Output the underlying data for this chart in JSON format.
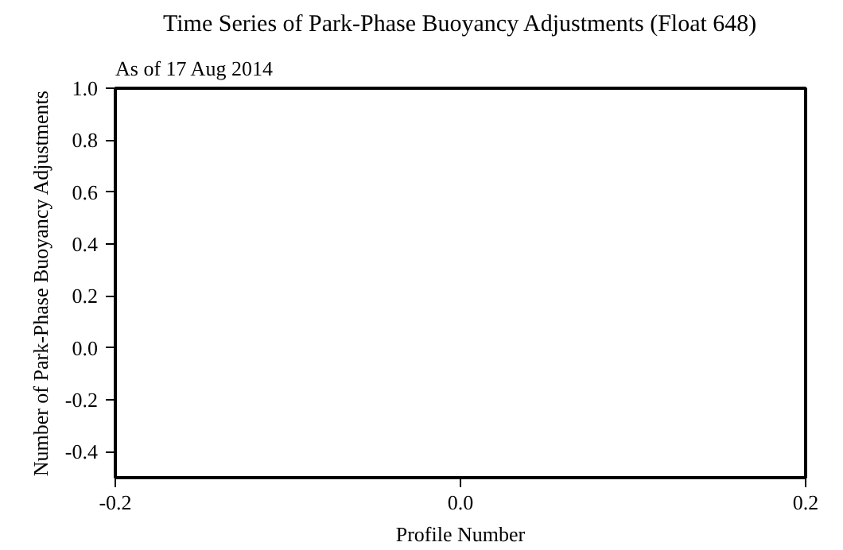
{
  "chart_data": {
    "type": "line",
    "title": "Time Series of Park-Phase Buoyancy Adjustments (Float 648)",
    "subtitle": "As of 17 Aug 2014",
    "xlabel": "Profile Number",
    "ylabel": "Number of Park-Phase Buoyancy Adjustments",
    "xlim": [
      -0.2,
      0.2
    ],
    "xticks": [
      -0.2,
      {
        "value": 0,
        "label": "0.0"
      },
      0.2
    ],
    "ylim": [
      -0.5,
      1.0
    ],
    "yticks": [
      -0.4,
      -0.2,
      {
        "value": 0,
        "label": "0.0"
      },
      0.2,
      0.4,
      0.6,
      0.8,
      {
        "value": 1,
        "label": "1.0"
      }
    ]
  }
}
